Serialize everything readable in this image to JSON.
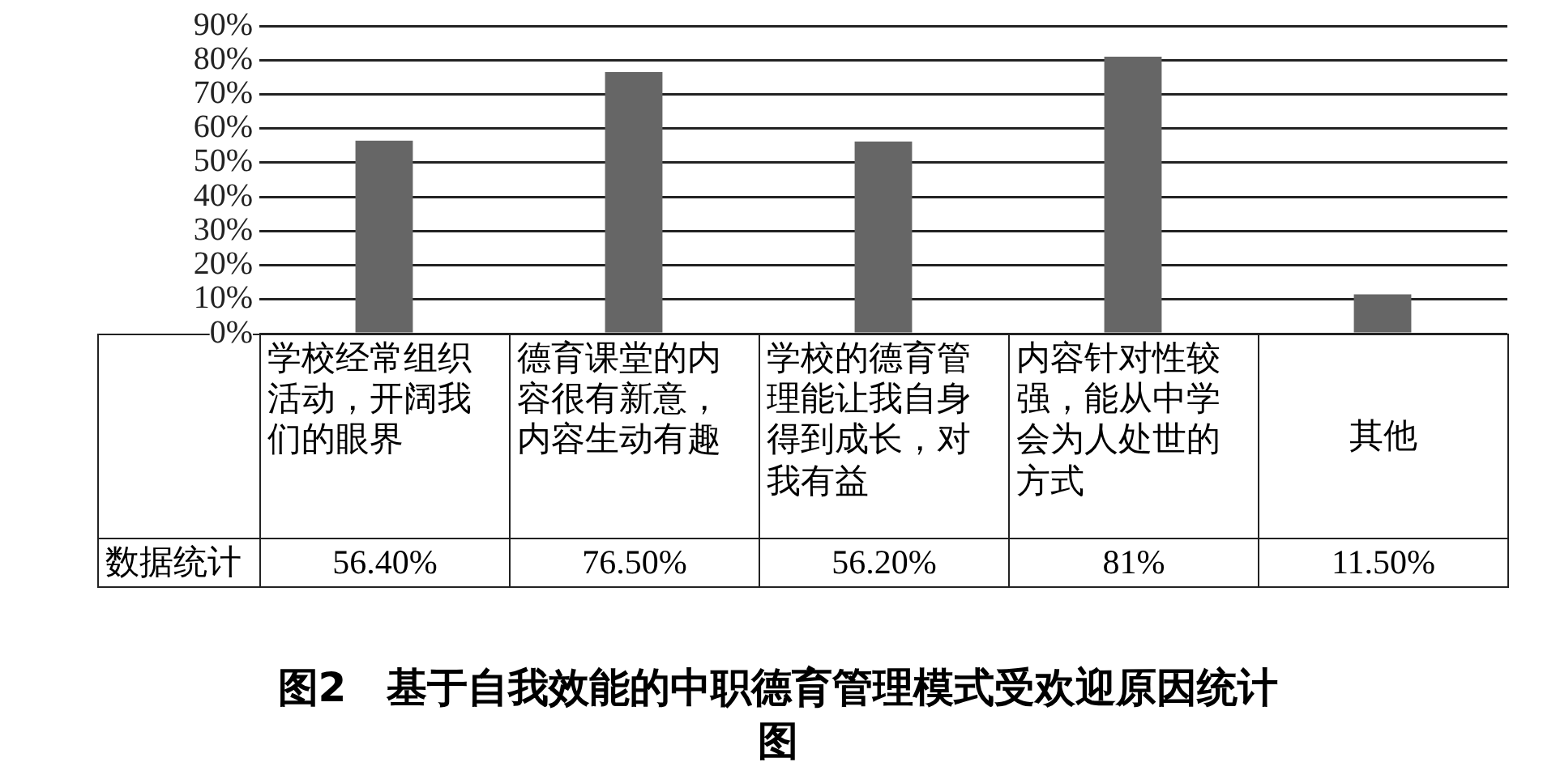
{
  "chart_data": {
    "type": "bar",
    "title": "图2　基于自我效能的中职德育管理模式受欢迎原因统计图",
    "categories": [
      "学校经常组织活动，开阔我们的眼界",
      "德育课堂的内容很有新意，内容生动有趣",
      "学校的德育管理能让我自身得到成长，对我有益",
      "内容针对性较强，能从中学会为人处世的方式",
      "其他"
    ],
    "series": [
      {
        "name": "数据统计",
        "color": "#666666",
        "values": [
          56.4,
          76.5,
          56.2,
          81,
          11.5
        ],
        "value_labels": [
          "56.40%",
          "76.50%",
          "56.20%",
          "81%",
          "11.50%"
        ]
      }
    ],
    "ylim": [
      0,
      90
    ],
    "yticks": [
      {
        "value": 0,
        "label": "0%"
      },
      {
        "value": 10,
        "label": "10%"
      },
      {
        "value": 20,
        "label": "20%"
      },
      {
        "value": 30,
        "label": "30%"
      },
      {
        "value": 40,
        "label": "40%"
      },
      {
        "value": 50,
        "label": "50%"
      },
      {
        "value": 60,
        "label": "60%"
      },
      {
        "value": 70,
        "label": "70%"
      },
      {
        "value": 80,
        "label": "80%"
      },
      {
        "value": 90,
        "label": "90%"
      }
    ],
    "grid": "y",
    "legend": false
  }
}
